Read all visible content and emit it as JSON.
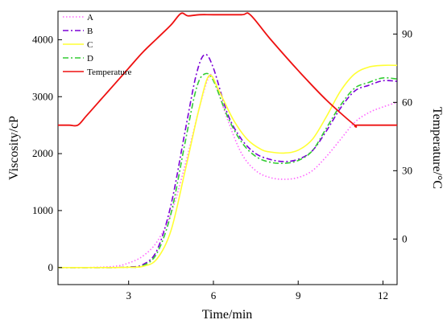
{
  "chart_data": {
    "type": "line",
    "title": "",
    "xlabel": "Time/min",
    "ylabel": "Viscosity/cP",
    "y2label": "Temperature/°C",
    "xlim": [
      0.5,
      12.5
    ],
    "ylim": [
      -300,
      4500
    ],
    "y2lim": [
      -20,
      100
    ],
    "xticks": [
      3,
      6,
      9,
      12
    ],
    "yticks": [
      0,
      1000,
      2000,
      3000,
      4000
    ],
    "y2ticks": [
      0,
      30,
      60,
      90
    ],
    "grid": false,
    "legend_position": "top-left",
    "series": [
      {
        "name": "A",
        "axis": "left",
        "color": "#ff66ff",
        "dash": "dotted",
        "x": [
          0.5,
          1.5,
          2.5,
          3.0,
          3.5,
          4.0,
          4.5,
          5.0,
          5.5,
          5.8,
          6.0,
          6.5,
          7.0,
          7.5,
          8.0,
          8.5,
          9.0,
          9.5,
          10.0,
          10.5,
          11.0,
          11.5,
          12.0,
          12.5
        ],
        "y": [
          0,
          0,
          20,
          80,
          200,
          450,
          950,
          1800,
          2800,
          3300,
          3320,
          2600,
          2000,
          1700,
          1580,
          1550,
          1580,
          1700,
          1950,
          2250,
          2550,
          2720,
          2820,
          2900
        ]
      },
      {
        "name": "B",
        "axis": "left",
        "color": "#7b00d6",
        "dash": "dashdot",
        "x": [
          0.5,
          1.5,
          2.5,
          3.0,
          3.5,
          4.0,
          4.5,
          5.0,
          5.4,
          5.7,
          6.0,
          6.5,
          7.0,
          7.5,
          8.0,
          8.5,
          9.0,
          9.5,
          10.0,
          10.5,
          11.0,
          11.5,
          12.0,
          12.5
        ],
        "y": [
          0,
          0,
          0,
          10,
          50,
          300,
          1100,
          2400,
          3400,
          3740,
          3500,
          2700,
          2250,
          2000,
          1900,
          1860,
          1900,
          2050,
          2400,
          2800,
          3100,
          3200,
          3280,
          3270
        ]
      },
      {
        "name": "C",
        "axis": "left",
        "color": "#ffff33",
        "dash": "solid",
        "x": [
          0.5,
          1.5,
          2.5,
          3.0,
          3.5,
          4.0,
          4.5,
          5.0,
          5.5,
          5.85,
          6.2,
          6.7,
          7.2,
          7.7,
          8.0,
          8.5,
          9.0,
          9.5,
          10.0,
          10.5,
          11.0,
          11.5,
          12.0,
          12.5
        ],
        "y": [
          0,
          0,
          0,
          5,
          20,
          150,
          650,
          1700,
          2800,
          3370,
          3100,
          2600,
          2250,
          2070,
          2030,
          2010,
          2060,
          2250,
          2650,
          3100,
          3400,
          3520,
          3550,
          3550
        ]
      },
      {
        "name": "D",
        "axis": "left",
        "color": "#33cc33",
        "dash": "dashdot",
        "x": [
          0.5,
          1.5,
          2.5,
          3.0,
          3.5,
          4.0,
          4.5,
          5.0,
          5.4,
          5.7,
          6.0,
          6.5,
          7.0,
          7.5,
          8.0,
          8.5,
          9.0,
          9.5,
          10.0,
          10.5,
          11.0,
          11.5,
          12.0,
          12.5
        ],
        "y": [
          0,
          0,
          0,
          5,
          30,
          250,
          950,
          2200,
          3150,
          3400,
          3280,
          2650,
          2200,
          1950,
          1850,
          1830,
          1880,
          2050,
          2450,
          2850,
          3150,
          3250,
          3330,
          3310
        ]
      },
      {
        "name": "Temperature",
        "axis": "right",
        "color": "#ee1111",
        "dash": "solid",
        "x": [
          0.5,
          0.9,
          1.2,
          1.5,
          2.0,
          2.5,
          3.0,
          3.5,
          4.0,
          4.5,
          4.85,
          5.1,
          5.5,
          6.0,
          7.0,
          7.3,
          8.0,
          9.0,
          10.0,
          11.0,
          11.1,
          12.5
        ],
        "y": [
          50,
          50,
          50,
          54,
          61,
          68,
          75,
          82,
          88,
          94,
          99,
          98,
          98.5,
          98.5,
          98.5,
          98.5,
          88,
          74,
          61,
          50,
          50,
          50
        ]
      }
    ]
  }
}
